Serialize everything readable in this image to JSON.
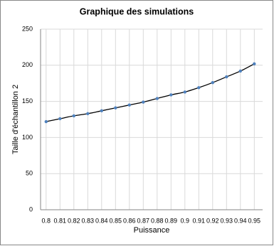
{
  "chart_data": {
    "type": "scatter",
    "title": "Graphique  des simulations",
    "x_label": "Puissance",
    "y_label": "Taille d'échantillon 2",
    "series": [
      {
        "color": "#4f81bd",
        "line_color": "#000000",
        "x": [
          0.8,
          0.81,
          0.82,
          0.83,
          0.84,
          0.85,
          0.86,
          0.87,
          0.88,
          0.89,
          0.9,
          0.91,
          0.92,
          0.93,
          0.94,
          0.95
        ],
        "values": [
          122,
          126,
          130,
          133,
          137,
          141,
          145,
          149,
          154,
          159,
          163,
          169,
          176,
          184,
          192,
          202
        ]
      }
    ],
    "xlim": [
      0.796,
      0.956
    ],
    "xticks": [
      0.8,
      0.81,
      0.82,
      0.83,
      0.84,
      0.85,
      0.86,
      0.87,
      0.88,
      0.89,
      0.9,
      0.91,
      0.92,
      0.93,
      0.94,
      0.95
    ],
    "ylim": [
      0,
      250
    ],
    "yticks": [
      0,
      50,
      100,
      150,
      200,
      250
    ],
    "grid": true,
    "line": true
  }
}
